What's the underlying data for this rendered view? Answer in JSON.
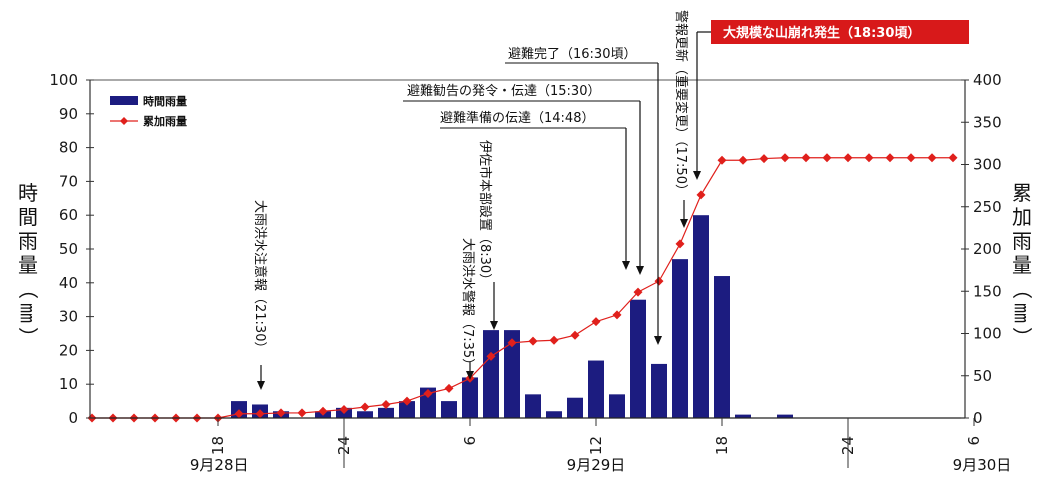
{
  "chart_data": {
    "type": "bar",
    "legend": {
      "hourly": "時間雨量",
      "cumulative": "累加雨量",
      "placement": "top-left"
    },
    "y_left": {
      "label": "時間雨量（㎜）",
      "range": [
        0,
        100
      ],
      "ticks": [
        "0",
        "10",
        "20",
        "30",
        "40",
        "50",
        "60",
        "70",
        "80",
        "90",
        "100"
      ]
    },
    "y_right": {
      "label": "累加雨量（㎜）",
      "range": [
        0,
        400
      ],
      "ticks": [
        "0",
        "50",
        "100",
        "150",
        "200",
        "250",
        "300",
        "350",
        "400"
      ]
    },
    "x_ticks": [
      "18",
      "24",
      "6",
      "12",
      "18",
      "24",
      "6"
    ],
    "days": [
      "9月28日",
      "9月29日",
      "9月30日"
    ],
    "series": [
      {
        "name": "時間雨量",
        "color": "#1c1c80",
        "values": [
          0,
          0,
          0,
          0,
          0,
          0,
          0,
          5,
          4,
          2,
          0,
          2,
          3,
          2,
          3,
          5,
          9,
          5,
          12,
          26,
          26,
          7,
          2,
          6,
          17,
          7,
          35,
          16,
          47,
          60,
          42,
          1,
          0,
          1,
          0,
          0,
          0,
          0,
          0,
          0,
          0,
          0
        ]
      },
      {
        "name": "累加雨量",
        "color": "#e0201c",
        "values": [
          0,
          0,
          0,
          0,
          0,
          0,
          0,
          5,
          5,
          6,
          6,
          8,
          10,
          13,
          16,
          20,
          29,
          35,
          47,
          73,
          89,
          91,
          92,
          98,
          114,
          122,
          149,
          162,
          206,
          264,
          305,
          305,
          307,
          308,
          308,
          308,
          308,
          308,
          308,
          308,
          308,
          308
        ]
      }
    ],
    "annotations": [
      {
        "text": "大雨洪水注意報（21:30）",
        "hour": 21.5
      },
      {
        "text": "大雨洪水警報（7:35）",
        "hour": 31.6
      },
      {
        "text": "伊佐市本部設置（8:30）",
        "hour": 32.5
      },
      {
        "text": "避難準備の伝達（14:48）",
        "hour": 38.8
      },
      {
        "text": "避難勧告の発令・伝達（15:30）",
        "hour": 39.5
      },
      {
        "text": "避難完了（16:30頃）",
        "hour": 40.5
      },
      {
        "text": "警報更新（重要変更）（17:50）",
        "hour": 41.8
      },
      {
        "text": "大規模な山崩れ発生（18:30頃）",
        "hour": 42.5,
        "highlight": true
      }
    ]
  }
}
